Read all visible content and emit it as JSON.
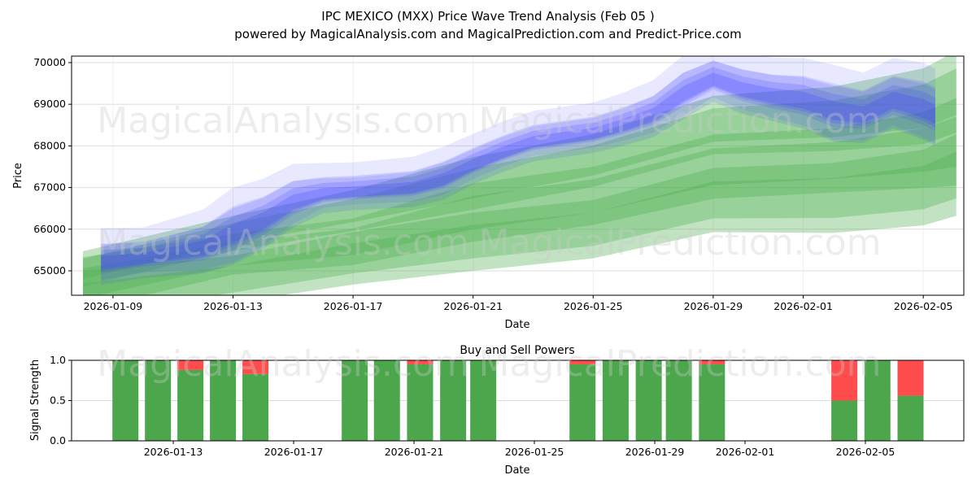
{
  "title": "IPC MEXICO (MXX) Price Wave Trend Analysis (Feb 05 )",
  "subtitle": "powered by MagicalAnalysis.com and MagicalPrediction.com and Predict-Price.com",
  "watermarks": [
    "MagicalAnalysis.com",
    "MagicalPrediction.com"
  ],
  "chart_data": [
    {
      "type": "area",
      "title": "",
      "xlabel": "Date",
      "ylabel": "Price",
      "x_unit": "days since 2026-01-09",
      "xlim": [
        -1.38,
        28.35
      ],
      "ylim": [
        64414,
        70156
      ],
      "yticks": [
        65000,
        66000,
        67000,
        68000,
        69000,
        70000
      ],
      "xticks": [
        {
          "day": 0,
          "label": "2026-01-09"
        },
        {
          "day": 4,
          "label": "2026-01-13"
        },
        {
          "day": 8,
          "label": "2026-01-17"
        },
        {
          "day": 12,
          "label": "2026-01-21"
        },
        {
          "day": 16,
          "label": "2026-01-25"
        },
        {
          "day": 20,
          "label": "2026-01-29"
        },
        {
          "day": 23,
          "label": "2026-02-01"
        },
        {
          "day": 27,
          "label": "2026-02-05"
        }
      ],
      "green_bands": [
        {
          "name": "wave-upper",
          "days": [
            -1,
            4,
            8,
            12,
            16,
            20,
            24,
            27,
            28.1
          ],
          "center": [
            65050,
            65900,
            66450,
            67100,
            67650,
            68500,
            68650,
            68950,
            69300
          ],
          "halfwidth": [
            300,
            300,
            350,
            450,
            450,
            500,
            550,
            650,
            700
          ]
        },
        {
          "name": "wave-mid",
          "days": [
            -1,
            4,
            8,
            12,
            16,
            20,
            24,
            27,
            28.1
          ],
          "center": [
            64700,
            65400,
            65700,
            66400,
            66800,
            67500,
            67650,
            67900,
            68100
          ],
          "halfwidth": [
            450,
            350,
            400,
            500,
            500,
            550,
            550,
            650,
            750
          ]
        },
        {
          "name": "wave-lower",
          "days": [
            -1,
            4,
            8,
            12,
            16,
            20,
            24,
            27,
            28.1
          ],
          "center": [
            64300,
            64800,
            65300,
            65700,
            66000,
            66700,
            66750,
            67000,
            67300
          ],
          "halfwidth": [
            500,
            400,
            450,
            500,
            500,
            550,
            600,
            650,
            700
          ]
        }
      ],
      "blue_bands": [
        {
          "name": "trend",
          "days": [
            -0.4,
            1,
            3,
            4,
            5,
            6,
            7,
            8,
            10,
            11,
            12,
            13,
            14,
            15,
            16,
            17,
            18,
            19,
            20,
            21,
            22,
            23,
            24,
            25,
            26,
            27,
            27.4
          ],
          "center": [
            65250,
            65350,
            65600,
            65950,
            66250,
            66700,
            66900,
            66950,
            67050,
            67250,
            67600,
            67900,
            68150,
            68250,
            68350,
            68550,
            68800,
            69300,
            69650,
            69400,
            69250,
            69150,
            68900,
            68800,
            69150,
            68950,
            68800
          ],
          "halfwidth": [
            350,
            300,
            400,
            500,
            450,
            400,
            300,
            280,
            300,
            320,
            300,
            300,
            300,
            300,
            300,
            320,
            350,
            400,
            350,
            380,
            400,
            450,
            500,
            450,
            450,
            500,
            500
          ]
        }
      ]
    },
    {
      "type": "bar",
      "title": "Buy and Sell Powers",
      "xlabel": "Date",
      "ylabel": "Signal Strength",
      "x_unit": "days since 2026-01-09",
      "xlim": [
        0.62,
        30.27
      ],
      "ylim": [
        0,
        1
      ],
      "yticks": [
        {
          "v": 0,
          "label": "0.0"
        },
        {
          "v": 0.5,
          "label": "0.5"
        },
        {
          "v": 1,
          "label": "1.0"
        }
      ],
      "xticks": [
        {
          "day": 4,
          "label": "2026-01-13"
        },
        {
          "day": 8,
          "label": "2026-01-17"
        },
        {
          "day": 12,
          "label": "2026-01-21"
        },
        {
          "day": 16,
          "label": "2026-01-25"
        },
        {
          "day": 20,
          "label": "2026-01-29"
        },
        {
          "day": 23,
          "label": "2026-02-01"
        },
        {
          "day": 27,
          "label": "2026-02-05"
        }
      ],
      "bars": [
        {
          "day": 2.41,
          "buy": 1.0,
          "sell": 0.0
        },
        {
          "day": 3.49,
          "buy": 1.0,
          "sell": 0.0
        },
        {
          "day": 4.57,
          "buy": 0.88,
          "sell": 0.12
        },
        {
          "day": 5.65,
          "buy": 1.0,
          "sell": 0.0
        },
        {
          "day": 6.73,
          "buy": 0.83,
          "sell": 0.17
        },
        {
          "day": 10.03,
          "buy": 1.0,
          "sell": 0.0
        },
        {
          "day": 11.1,
          "buy": 1.0,
          "sell": 0.0
        },
        {
          "day": 12.2,
          "buy": 0.95,
          "sell": 0.05
        },
        {
          "day": 13.3,
          "buy": 1.0,
          "sell": 0.0
        },
        {
          "day": 14.3,
          "buy": 1.0,
          "sell": 0.0
        },
        {
          "day": 17.6,
          "buy": 0.95,
          "sell": 0.05
        },
        {
          "day": 18.7,
          "buy": 1.0,
          "sell": 0.0
        },
        {
          "day": 19.8,
          "buy": 1.0,
          "sell": 0.0
        },
        {
          "day": 20.8,
          "buy": 1.0,
          "sell": 0.0
        },
        {
          "day": 21.9,
          "buy": 0.95,
          "sell": 0.05
        },
        {
          "day": 26.3,
          "buy": 0.5,
          "sell": 0.5
        },
        {
          "day": 27.4,
          "buy": 1.0,
          "sell": 0.0
        },
        {
          "day": 28.5,
          "buy": 0.56,
          "sell": 0.44
        }
      ]
    }
  ],
  "colors": {
    "buy": "#4ca64c",
    "sell": "#ff4c4c",
    "green": "#4caf50",
    "blue": "#4040ff"
  }
}
